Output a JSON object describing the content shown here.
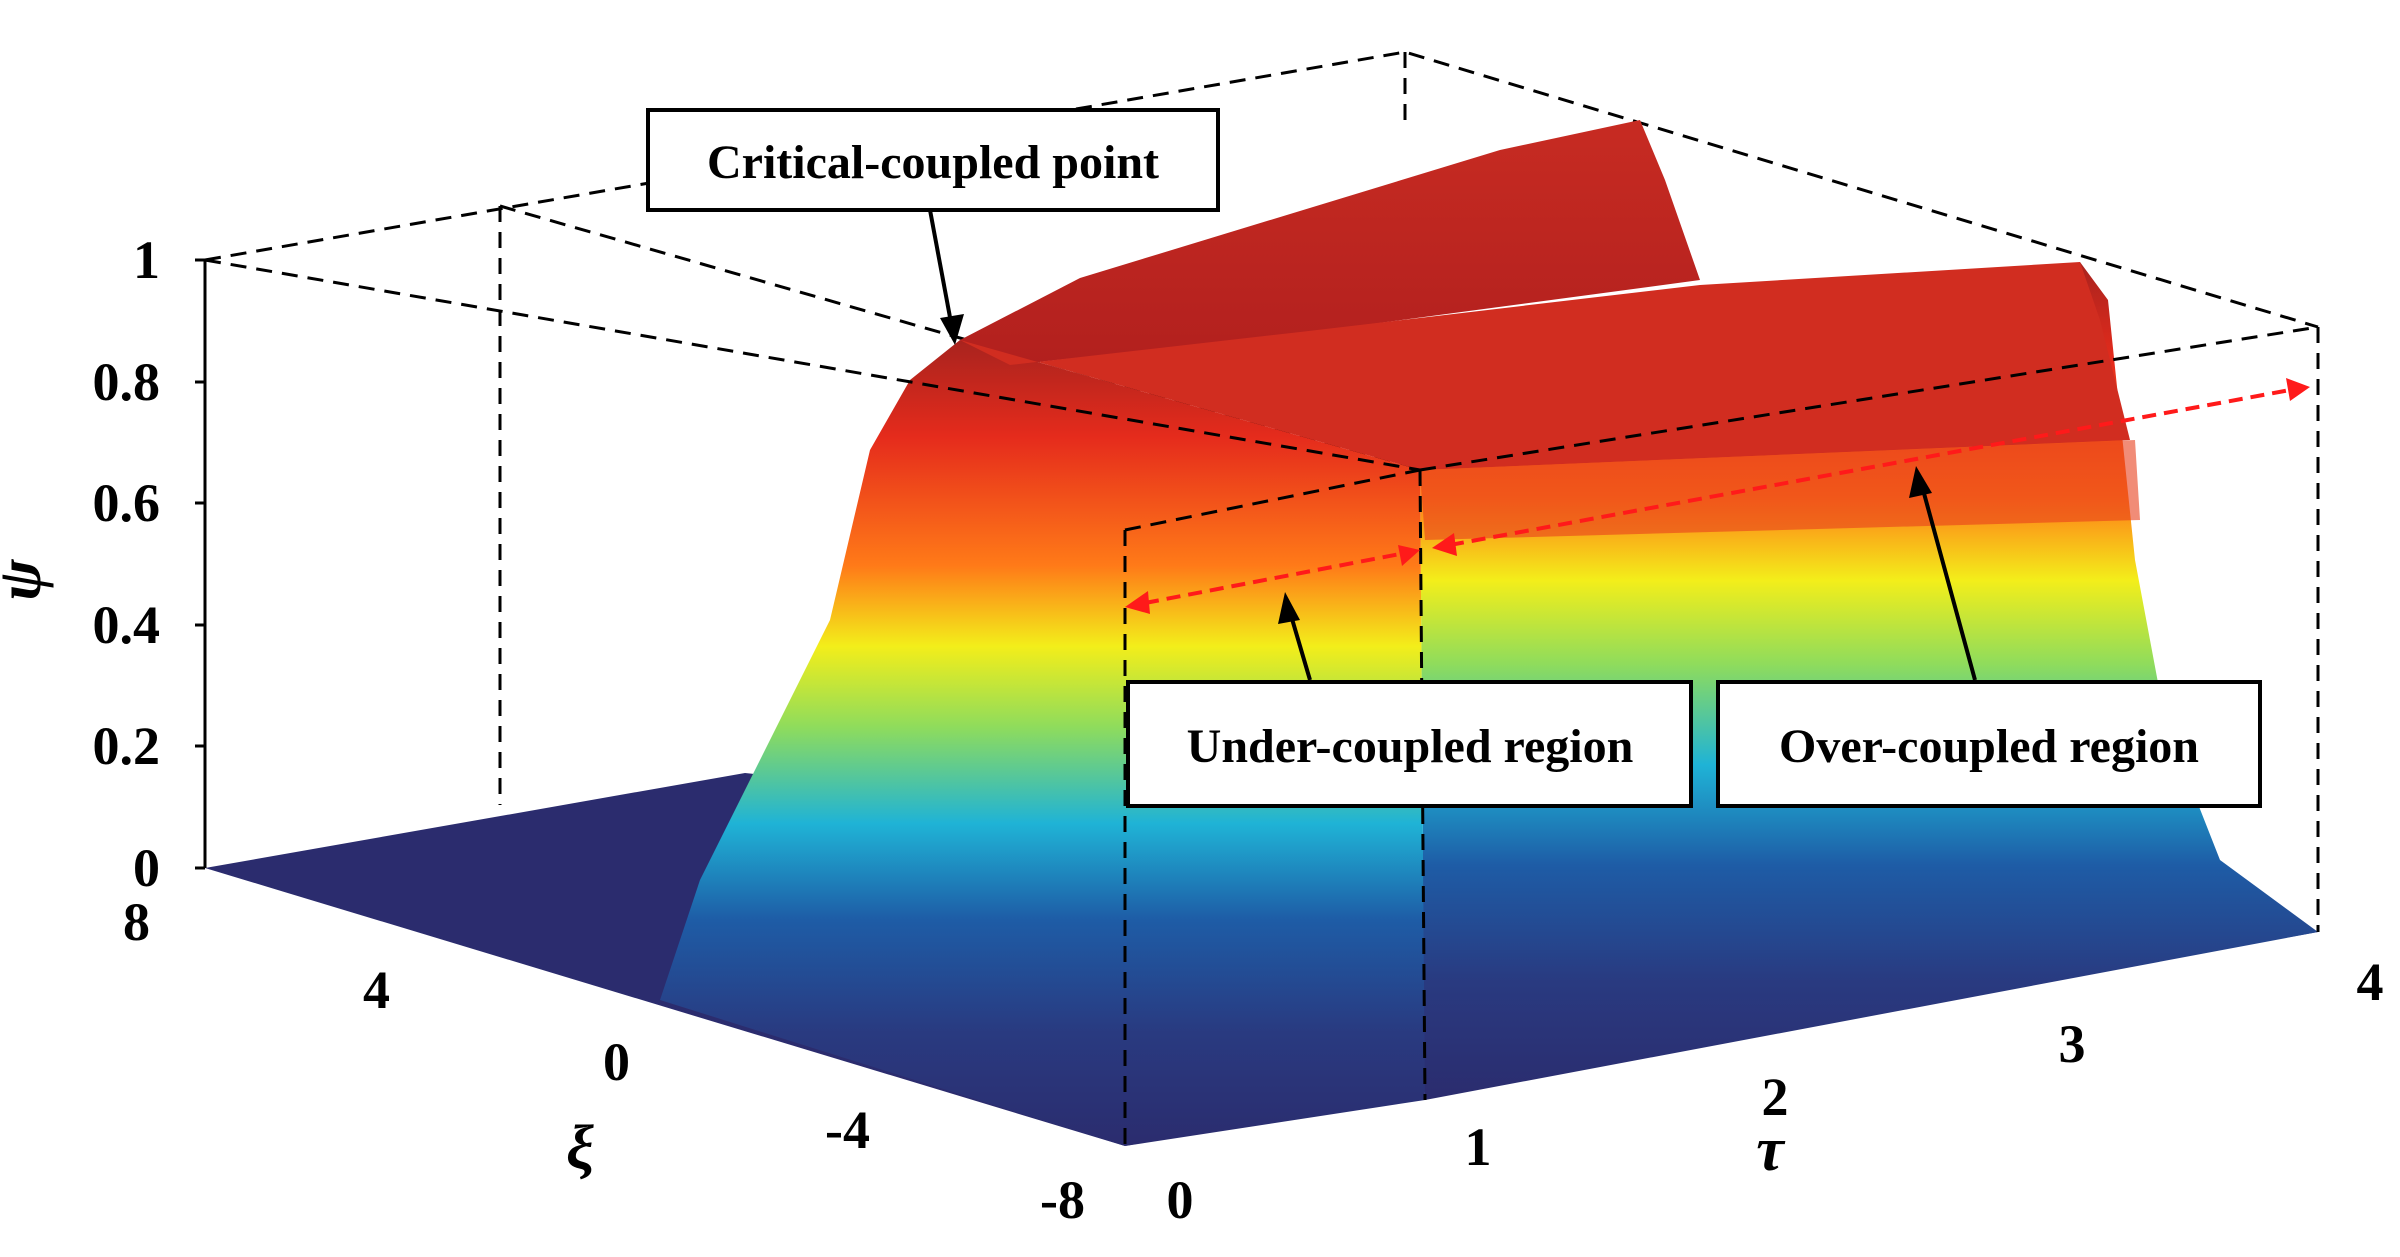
{
  "chart_data": {
    "type": "surface",
    "xlabel": "τ",
    "ylabel": "ξ",
    "zlabel": "ψ",
    "xlim": [
      0,
      4
    ],
    "ylim": [
      -8,
      8
    ],
    "zlim": [
      0,
      1
    ],
    "x_ticks": [
      "0",
      "1",
      "2",
      "3",
      "4"
    ],
    "y_ticks": [
      "-8",
      "-4",
      "0",
      "4",
      "8"
    ],
    "z_ticks": [
      "0",
      "0.2",
      "0.4",
      "0.6",
      "0.8",
      "1"
    ],
    "colormap": [
      "#2b2c6e",
      "#1f5aa6",
      "#16b5d6",
      "#9be05a",
      "#f3f01b",
      "#ff9a1a",
      "#f2351a",
      "#b3261e"
    ],
    "annotations": {
      "critical": "Critical-coupled point",
      "under": "Under-coupled region",
      "over": "Over-coupled region"
    }
  }
}
